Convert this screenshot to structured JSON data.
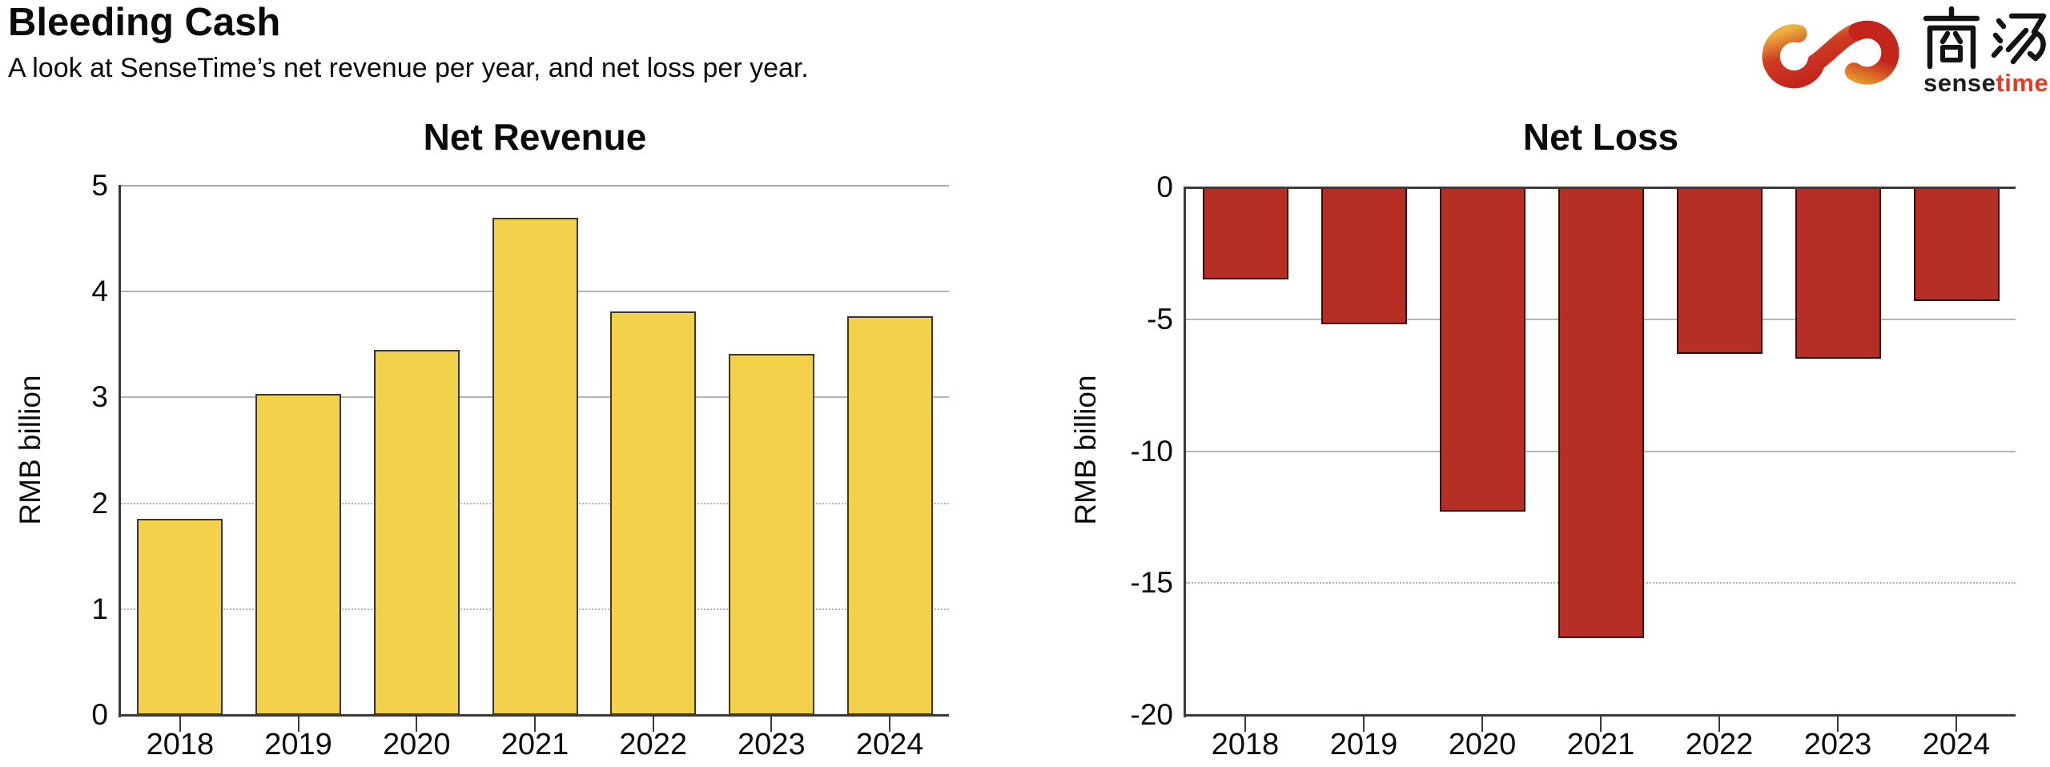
{
  "header": {
    "title": "Bleeding Cash",
    "subtitle": "A look at SenseTime’s net revenue per year, and net loss per year."
  },
  "logo": {
    "hanzi": "商汤",
    "wordmark": {
      "black": "sense",
      "red": "time"
    },
    "colors": {
      "swirl_red": "#C3251C",
      "swirl_gold": "#ECB23F",
      "swirl_orange": "#E9972F",
      "hanzi_color": "#131313",
      "time_red": "#E03E24"
    }
  },
  "chart_data": [
    {
      "type": "bar",
      "title": "Net Revenue",
      "ylabel": "RMB billion",
      "xlabel": "",
      "categories": [
        "2018",
        "2019",
        "2020",
        "2021",
        "2022",
        "2023",
        "2024"
      ],
      "values": [
        1.85,
        3.03,
        3.45,
        4.7,
        3.81,
        3.41,
        3.77
      ],
      "ylim": [
        0,
        5
      ],
      "grid": true,
      "legend": false,
      "bar_color": "#F4D14A",
      "bar_border_color": "#3B352B",
      "yticks": [
        {
          "value": 5,
          "label": "5",
          "line": "boundary"
        },
        {
          "value": 4,
          "label": "4",
          "line": "solid"
        },
        {
          "value": 3,
          "label": "3",
          "line": "solid"
        },
        {
          "value": 2,
          "label": "2",
          "line": "dotted"
        },
        {
          "value": 1,
          "label": "1",
          "line": "dotted"
        },
        {
          "value": 0,
          "label": "0",
          "line": "axis"
        }
      ]
    },
    {
      "type": "bar",
      "title": "Net Loss",
      "ylabel": "RMB billion",
      "xlabel": "",
      "categories": [
        "2018",
        "2019",
        "2020",
        "2021",
        "2022",
        "2023",
        "2024"
      ],
      "values": [
        -3.5,
        -5.2,
        -12.3,
        -17.1,
        -6.3,
        -6.5,
        -4.3
      ],
      "ylim": [
        -20,
        0
      ],
      "grid": true,
      "legend": false,
      "bar_color": "#B52F26",
      "bar_border_color": "#26130F",
      "yticks": [
        {
          "value": 0,
          "label": "0",
          "line": "axis-top"
        },
        {
          "value": -5,
          "label": "-5",
          "line": "solid"
        },
        {
          "value": -10,
          "label": "-10",
          "line": "solid"
        },
        {
          "value": -15,
          "label": "-15",
          "line": "dotted"
        },
        {
          "value": -20,
          "label": "-20",
          "line": "axis"
        }
      ]
    }
  ]
}
